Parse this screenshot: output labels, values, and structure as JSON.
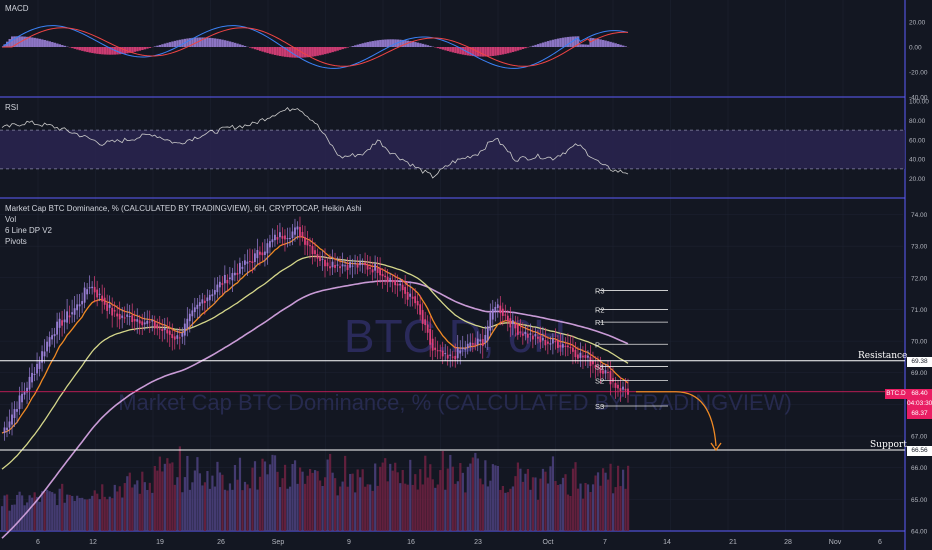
{
  "colors": {
    "bg": "#131722",
    "grid": "#1f2433",
    "sep": "#5c5cff",
    "axis_text": "#b2b5be",
    "bull": "#9a7fd6",
    "bear": "#e0407b",
    "ema_fast": "#f08a24",
    "ema_mid": "#d4d68a",
    "ema_slow": "#c99bd6",
    "macd": "#3b82f6",
    "signal": "#ef4444",
    "rsi": "#c9c9c9",
    "rsi_band": "#2a2450",
    "white": "#ffffff",
    "price_tag": "#e91e63"
  },
  "panes": {
    "macd": {
      "name": "MACD",
      "ticks": [
        "20.00",
        "0.00",
        "-20.00",
        "-40.00"
      ]
    },
    "rsi": {
      "name": "RSI",
      "ticks": [
        "100.00",
        "80.00",
        "60.00",
        "40.00",
        "20.00"
      ]
    },
    "main": {
      "title": "Market Cap BTC Dominance, % (CALCULATED BY TRADINGVIEW), 6H, CRYPTOCAP, Heikin Ashi",
      "indicators": [
        "Vol",
        "6 Line DP V2",
        "Pivots"
      ],
      "watermark_symbol": "BTC.D, 6H",
      "watermark_name": "Market Cap BTC Dominance, % (CALCULATED BY TRADINGVIEW)",
      "ticks": [
        "74.00",
        "73.00",
        "72.00",
        "71.00",
        "70.00",
        "69.00",
        "68.00",
        "67.00",
        "66.00",
        "65.00",
        "64.00"
      ],
      "ylim": [
        64,
        74.3
      ],
      "pivots": [
        "R3",
        "R2",
        "R1",
        "P",
        "S1",
        "S2",
        "S3"
      ],
      "resistance_label": "Resistance",
      "support_label": "Support",
      "resistance_value": "69.38",
      "support_value": "66.56",
      "symbol_tag": "BTC.D",
      "price": "68.40",
      "countdown": "04:03:30",
      "price_low": "68.37"
    }
  },
  "x_axis": [
    "6",
    "12",
    "19",
    "26",
    "Sep",
    "9",
    "16",
    "23",
    "Oct",
    "7",
    "14",
    "21",
    "28",
    "Nov",
    "6"
  ],
  "chart_data": {
    "type": "candlestick",
    "title": "Market Cap BTC Dominance, % (CALCULATED BY TRADINGVIEW), 6H, CRYPTOCAP, Heikin Ashi",
    "indicators": [
      "Vol",
      "6 Line DP V2",
      "Pivots",
      "MACD",
      "RSI"
    ],
    "price_close_anchors": [
      [
        0,
        67.1
      ],
      [
        10,
        68.6
      ],
      [
        20,
        70.3
      ],
      [
        30,
        71.1
      ],
      [
        35,
        71.8
      ],
      [
        45,
        70.8
      ],
      [
        55,
        70.7
      ],
      [
        70,
        70.1
      ],
      [
        80,
        71.3
      ],
      [
        90,
        72.0
      ],
      [
        100,
        72.6
      ],
      [
        110,
        73.3
      ],
      [
        118,
        73.5
      ],
      [
        128,
        72.5
      ],
      [
        140,
        72.4
      ],
      [
        150,
        72.3
      ],
      [
        160,
        71.6
      ],
      [
        165,
        71.2
      ],
      [
        172,
        69.7
      ],
      [
        178,
        69.4
      ],
      [
        185,
        69.8
      ],
      [
        192,
        70.0
      ],
      [
        197,
        71.2
      ],
      [
        205,
        70.4
      ],
      [
        215,
        70.0
      ],
      [
        225,
        69.9
      ],
      [
        230,
        69.6
      ],
      [
        240,
        69.1
      ],
      [
        245,
        68.6
      ],
      [
        250,
        68.4
      ]
    ],
    "rsi_anchors": [
      [
        0,
        72
      ],
      [
        10,
        78
      ],
      [
        20,
        74
      ],
      [
        30,
        66
      ],
      [
        40,
        56
      ],
      [
        50,
        60
      ],
      [
        60,
        66
      ],
      [
        70,
        56
      ],
      [
        80,
        65
      ],
      [
        90,
        72
      ],
      [
        100,
        76
      ],
      [
        110,
        88
      ],
      [
        118,
        94
      ],
      [
        125,
        78
      ],
      [
        135,
        42
      ],
      [
        145,
        46
      ],
      [
        150,
        60
      ],
      [
        155,
        48
      ],
      [
        165,
        32
      ],
      [
        172,
        22
      ],
      [
        180,
        37
      ],
      [
        190,
        46
      ],
      [
        197,
        62
      ],
      [
        205,
        40
      ],
      [
        215,
        43
      ],
      [
        220,
        41
      ],
      [
        230,
        55
      ],
      [
        240,
        33
      ],
      [
        245,
        28
      ],
      [
        250,
        26
      ]
    ],
    "pivot_levels": {
      "R3": 71.6,
      "R2": 71.0,
      "R1": 70.6,
      "P": 69.9,
      "S1": 69.2,
      "S2": 68.75,
      "S3": 67.95
    },
    "resistance": 69.38,
    "support": 66.56,
    "last_price": 68.4,
    "projection": "dotted down-arrow from last price toward support"
  }
}
